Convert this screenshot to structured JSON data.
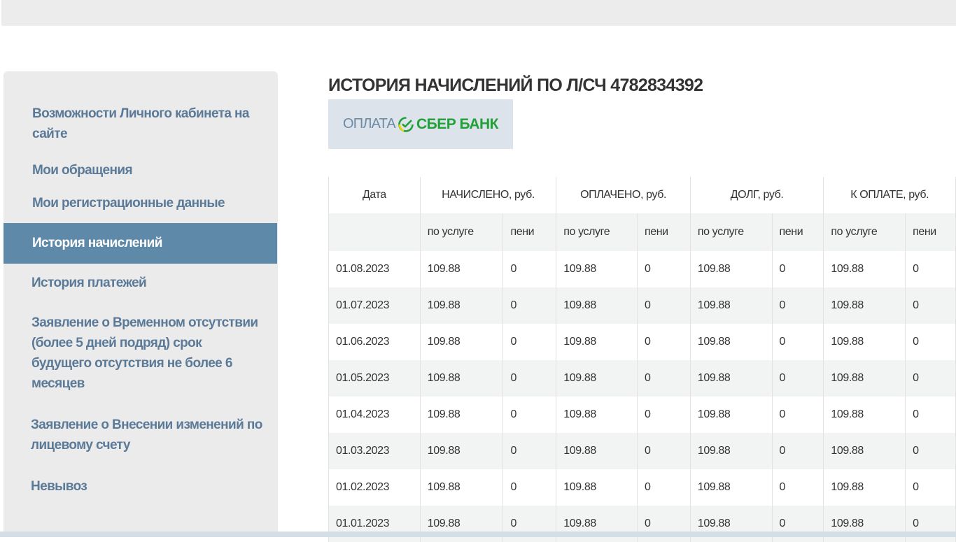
{
  "sidebar": {
    "items": [
      {
        "label": "Возможности Личного кабинета на сайте",
        "active": false
      },
      {
        "label": "Мои обращения",
        "active": false
      },
      {
        "label": "Мои регистрационные данные",
        "active": false
      },
      {
        "label": "История начислений",
        "active": true
      },
      {
        "label": "История платежей",
        "active": false
      },
      {
        "label": "Заявление о Временном отсутствии (более 5 дней подряд) срок будущего отсутствия не более 6 месяцев",
        "active": false
      },
      {
        "label": "Заявление о Внесении изменений по лицевому счету",
        "active": false
      },
      {
        "label": "Невывоз",
        "active": false
      }
    ]
  },
  "main": {
    "title": "ИСТОРИЯ НАЧИСЛЕНИЙ ПО Л/СЧ 4782834392",
    "pay_button": {
      "prefix": "ОПЛАТА",
      "brand": "СБЕР БАНК",
      "icon": "sber-check-icon"
    },
    "table": {
      "headers": [
        "Дата",
        "НАЧИСЛЕНО, руб.",
        "ОПЛАЧЕНО, руб.",
        "ДОЛГ, руб.",
        "К ОПЛАТЕ, руб."
      ],
      "subheaders": [
        "по услуге",
        "пени",
        "по услуге",
        "пени",
        "по услуге",
        "пени",
        "по услуге",
        "пени"
      ],
      "rows": [
        [
          "01.08.2023",
          "109.88",
          "0",
          "109.88",
          "0",
          "109.88",
          "0",
          "109.88",
          "0"
        ],
        [
          "01.07.2023",
          "109.88",
          "0",
          "109.88",
          "0",
          "109.88",
          "0",
          "109.88",
          "0"
        ],
        [
          "01.06.2023",
          "109.88",
          "0",
          "109.88",
          "0",
          "109.88",
          "0",
          "109.88",
          "0"
        ],
        [
          "01.05.2023",
          "109.88",
          "0",
          "109.88",
          "0",
          "109.88",
          "0",
          "109.88",
          "0"
        ],
        [
          "01.04.2023",
          "109.88",
          "0",
          "109.88",
          "0",
          "109.88",
          "0",
          "109.88",
          "0"
        ],
        [
          "01.03.2023",
          "109.88",
          "0",
          "109.88",
          "0",
          "109.88",
          "0",
          "109.88",
          "0"
        ],
        [
          "01.02.2023",
          "109.88",
          "0",
          "109.88",
          "0",
          "109.88",
          "0",
          "109.88",
          "0"
        ],
        [
          "01.01.2023",
          "109.88",
          "0",
          "109.88",
          "0",
          "109.88",
          "0",
          "109.88",
          "0"
        ]
      ]
    }
  },
  "colors": {
    "sidebar_text": "#5b7a98",
    "active_bg": "#5f89a9",
    "sber_green": "#21a038"
  }
}
